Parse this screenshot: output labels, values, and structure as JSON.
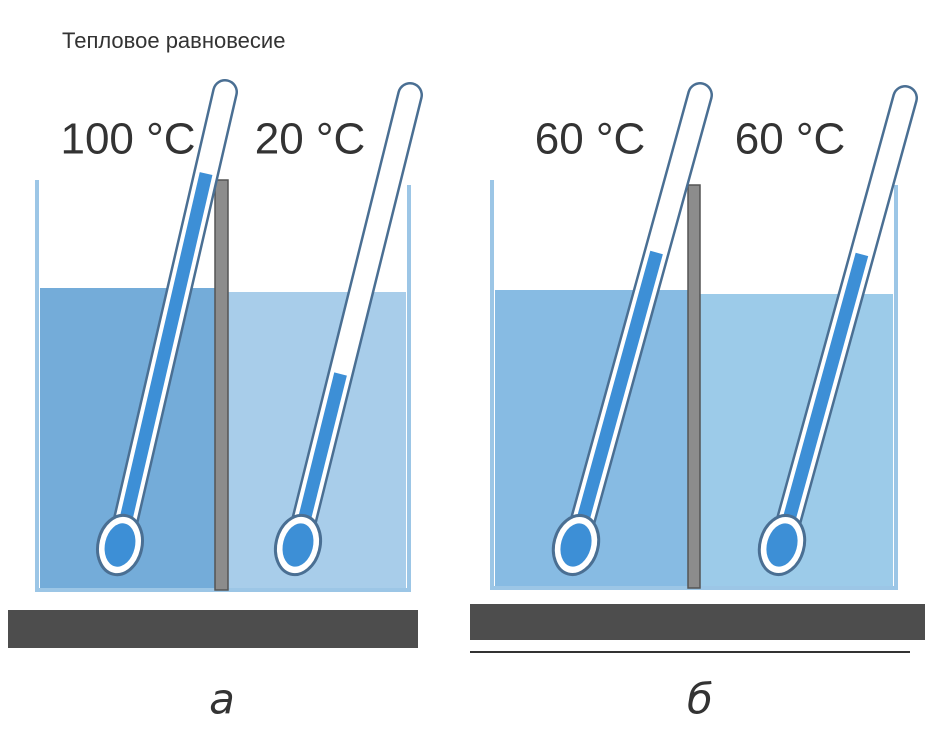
{
  "title": "Тепловое равновесие",
  "panels": [
    {
      "label": "а",
      "left": "100 °C",
      "right": "20 °C"
    },
    {
      "label": "б",
      "left": "60 °C",
      "right": "60 °C"
    }
  ]
}
